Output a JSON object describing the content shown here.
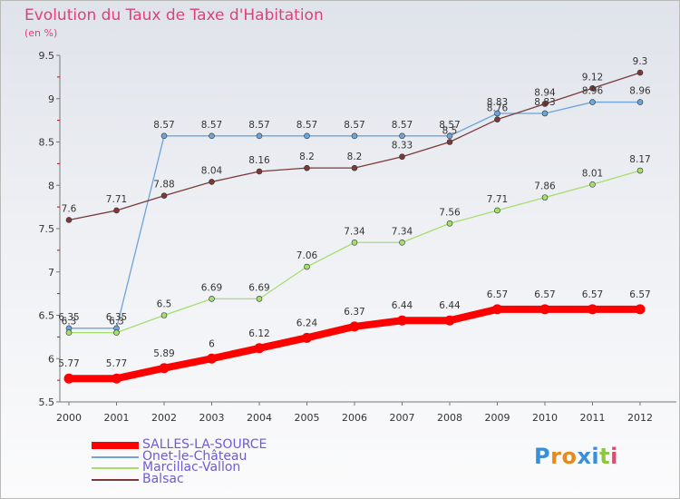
{
  "title": "Evolution du Taux de Taxe d'Habitation",
  "subtitle": "(en %)",
  "logo": {
    "text": "Proxiti",
    "letters": [
      {
        "ch": "P",
        "color": "#3b8fd8"
      },
      {
        "ch": "r",
        "color": "#e58a1f"
      },
      {
        "ch": "o",
        "color": "#e58a1f"
      },
      {
        "ch": "x",
        "color": "#3b8fd8"
      },
      {
        "ch": "i",
        "color": "#3b8fd8"
      },
      {
        "ch": "t",
        "color": "#8dc63f"
      },
      {
        "ch": "i",
        "color": "#e04b6f"
      }
    ]
  },
  "chart_data": {
    "type": "line",
    "title": "Evolution du Taux de Taxe d'Habitation",
    "subtitle": "(en %)",
    "x": [
      "2000",
      "2001",
      "2002",
      "2003",
      "2004",
      "2005",
      "2006",
      "2007",
      "2008",
      "2009",
      "2010",
      "2011",
      "2012"
    ],
    "ylim": [
      5.5,
      9.5
    ],
    "yticks": [
      "5.5",
      "6",
      "6.5",
      "7",
      "7.5",
      "8",
      "8.5",
      "9",
      "9.5"
    ],
    "grid": false,
    "legend_position": "bottom-left",
    "series": [
      {
        "name": "SALLES-LA-SOURCE",
        "color": "#ff0000",
        "thick": true,
        "values": [
          5.77,
          5.77,
          5.89,
          6,
          6.12,
          6.24,
          6.37,
          6.44,
          6.44,
          6.57,
          6.57,
          6.57,
          6.57
        ],
        "labels": [
          "5.77",
          "5.77",
          "5.89",
          "6",
          "6.12",
          "6.24",
          "6.37",
          "6.44",
          "6.44",
          "6.57",
          "6.57",
          "6.57",
          "6.57"
        ]
      },
      {
        "name": "Onet-le-Château",
        "color": "#6ea4d8",
        "values": [
          6.35,
          6.35,
          8.57,
          8.57,
          8.57,
          8.57,
          8.57,
          8.57,
          8.57,
          8.83,
          8.83,
          8.96,
          8.96
        ],
        "labels": [
          "6.35",
          "6.35",
          "8.57",
          "8.57",
          "8.57",
          "8.57",
          "8.57",
          "8.57",
          "8.57",
          "8.83",
          "8.83",
          "8.96",
          "8.96"
        ]
      },
      {
        "name": "Marcillac-Vallon",
        "color": "#a6de6e",
        "values": [
          6.3,
          6.3,
          6.5,
          6.69,
          6.69,
          7.06,
          7.34,
          7.34,
          7.56,
          7.71,
          7.86,
          8.01,
          8.17
        ],
        "labels": [
          "6.3",
          "6.3",
          "6.5",
          "6.69",
          "6.69",
          "7.06",
          "7.34",
          "7.34",
          "7.56",
          "7.71",
          "7.86",
          "8.01",
          "8.17"
        ]
      },
      {
        "name": "Balsac",
        "color": "#7a3a3a",
        "values": [
          7.6,
          7.71,
          7.88,
          8.04,
          8.16,
          8.2,
          8.2,
          8.33,
          8.5,
          8.76,
          8.94,
          9.12,
          9.3
        ],
        "labels": [
          "7.6",
          "7.71",
          "7.88",
          "8.04",
          "8.16",
          "8.2",
          "8.2",
          "8.33",
          "8.5",
          "8.76",
          "8.94",
          "9.12",
          "9.3"
        ]
      }
    ]
  }
}
